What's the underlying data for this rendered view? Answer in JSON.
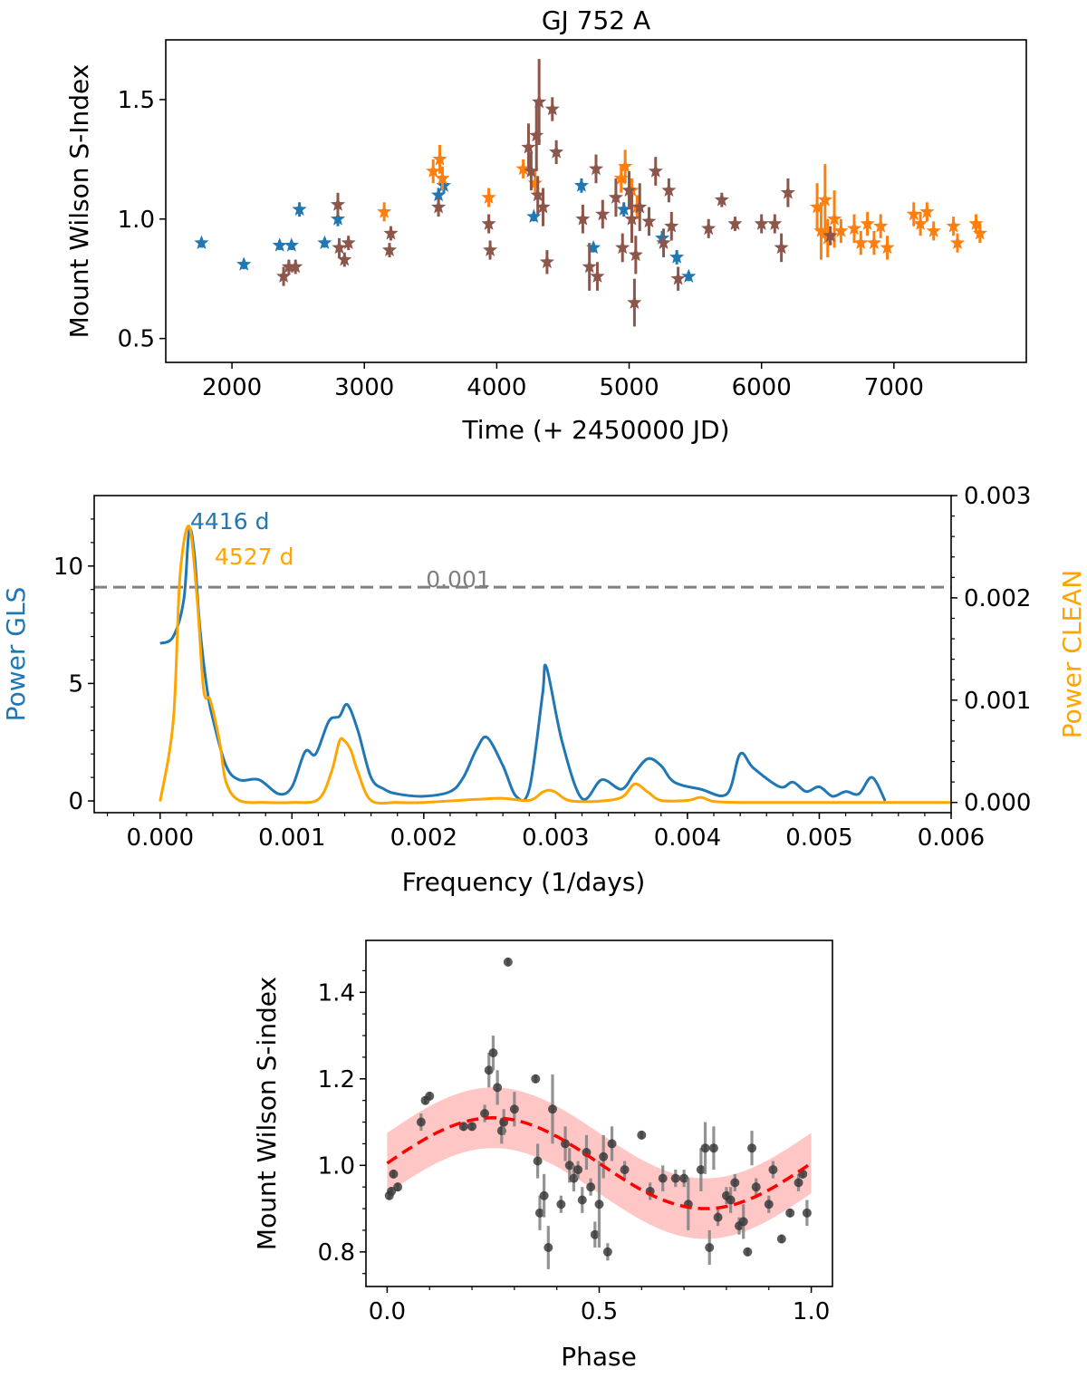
{
  "chart_data": [
    {
      "type": "scatter",
      "title": "GJ 752 A",
      "xlabel": "Time (+ 2450000 JD)",
      "ylabel": "Mount Wilson S-Index",
      "xlim": [
        1500,
        8000
      ],
      "ylim": [
        0.4,
        1.75
      ],
      "xticks": [
        2000,
        3000,
        4000,
        5000,
        6000,
        7000
      ],
      "xtick_labels": [
        "2000",
        "3000",
        "4000",
        "5000",
        "6000",
        "7000"
      ],
      "yticks": [
        0.5,
        1.0,
        1.5
      ],
      "ytick_labels": [
        "0.5",
        "1.0",
        "1.5"
      ],
      "colors": {
        "blue": "#1f77b4",
        "orange": "#ff7f0e",
        "brown": "#8c564b"
      },
      "series": [
        {
          "name": "blue",
          "color": "#1f77b4",
          "points": [
            [
              1770,
              0.9,
              0.02
            ],
            [
              2090,
              0.81,
              0.02
            ],
            [
              2360,
              0.89,
              0.02
            ],
            [
              2450,
              0.89,
              0.02
            ],
            [
              2510,
              1.04,
              0.03
            ],
            [
              2700,
              0.9,
              0.02
            ],
            [
              2800,
              1.0,
              0.03
            ],
            [
              3560,
              1.1,
              0.03
            ],
            [
              3600,
              1.14,
              0.03
            ],
            [
              4280,
              1.01,
              0.02
            ],
            [
              4640,
              1.14,
              0.03
            ],
            [
              4730,
              0.88,
              0.02
            ],
            [
              4960,
              1.04,
              0.03
            ],
            [
              5250,
              0.92,
              0.03
            ],
            [
              5360,
              0.84,
              0.03
            ],
            [
              5450,
              0.76,
              0.02
            ]
          ]
        },
        {
          "name": "orange",
          "color": "#ff7f0e",
          "points": [
            [
              3150,
              1.03,
              0.04
            ],
            [
              3520,
              1.2,
              0.05
            ],
            [
              3570,
              1.25,
              0.06
            ],
            [
              3590,
              1.17,
              0.05
            ],
            [
              3940,
              1.09,
              0.04
            ],
            [
              4200,
              1.21,
              0.04
            ],
            [
              4290,
              1.15,
              0.05
            ],
            [
              4940,
              1.17,
              0.06
            ],
            [
              4970,
              1.22,
              0.07
            ],
            [
              5020,
              1.12,
              0.05
            ],
            [
              5060,
              1.05,
              0.05
            ],
            [
              6420,
              1.05,
              0.1
            ],
            [
              6450,
              0.95,
              0.12
            ],
            [
              6480,
              1.08,
              0.15
            ],
            [
              6500,
              0.92,
              0.08
            ],
            [
              6550,
              1.0,
              0.12
            ],
            [
              6600,
              0.95,
              0.05
            ],
            [
              6700,
              0.96,
              0.06
            ],
            [
              6750,
              0.9,
              0.05
            ],
            [
              6800,
              0.98,
              0.05
            ],
            [
              6850,
              0.9,
              0.05
            ],
            [
              6900,
              0.97,
              0.05
            ],
            [
              6950,
              0.88,
              0.05
            ],
            [
              7150,
              1.02,
              0.05
            ],
            [
              7200,
              0.98,
              0.05
            ],
            [
              7250,
              1.03,
              0.04
            ],
            [
              7300,
              0.95,
              0.04
            ],
            [
              7450,
              0.97,
              0.04
            ],
            [
              7480,
              0.9,
              0.04
            ],
            [
              7620,
              0.98,
              0.04
            ],
            [
              7650,
              0.94,
              0.04
            ]
          ]
        },
        {
          "name": "brown",
          "color": "#8c564b",
          "points": [
            [
              2390,
              0.76,
              0.04
            ],
            [
              2430,
              0.8,
              0.03
            ],
            [
              2480,
              0.8,
              0.03
            ],
            [
              2800,
              1.06,
              0.05
            ],
            [
              2810,
              0.88,
              0.04
            ],
            [
              2850,
              0.83,
              0.03
            ],
            [
              2880,
              0.9,
              0.03
            ],
            [
              3190,
              0.87,
              0.03
            ],
            [
              3200,
              0.94,
              0.03
            ],
            [
              3560,
              1.05,
              0.04
            ],
            [
              3940,
              0.98,
              0.04
            ],
            [
              3950,
              0.87,
              0.04
            ],
            [
              4240,
              1.3,
              0.1
            ],
            [
              4260,
              1.2,
              0.08
            ],
            [
              4300,
              1.35,
              0.15
            ],
            [
              4310,
              1.1,
              0.08
            ],
            [
              4320,
              1.49,
              0.18
            ],
            [
              4350,
              1.05,
              0.08
            ],
            [
              4380,
              0.82,
              0.05
            ],
            [
              4420,
              1.46,
              0.05
            ],
            [
              4450,
              1.28,
              0.05
            ],
            [
              4650,
              1.0,
              0.06
            ],
            [
              4700,
              0.8,
              0.1
            ],
            [
              4750,
              1.21,
              0.06
            ],
            [
              4760,
              0.76,
              0.06
            ],
            [
              4800,
              1.02,
              0.06
            ],
            [
              4900,
              1.09,
              0.08
            ],
            [
              4950,
              0.88,
              0.06
            ],
            [
              5000,
              1.12,
              0.08
            ],
            [
              5020,
              1.0,
              0.1
            ],
            [
              5040,
              0.65,
              0.1
            ],
            [
              5050,
              0.85,
              0.08
            ],
            [
              5080,
              1.05,
              0.1
            ],
            [
              5150,
              0.99,
              0.06
            ],
            [
              5200,
              1.2,
              0.06
            ],
            [
              5260,
              0.9,
              0.06
            ],
            [
              5300,
              1.12,
              0.05
            ],
            [
              5320,
              0.97,
              0.06
            ],
            [
              5370,
              0.75,
              0.05
            ],
            [
              5600,
              0.96,
              0.04
            ],
            [
              5700,
              1.08,
              0.03
            ],
            [
              5800,
              0.98,
              0.03
            ],
            [
              6000,
              0.98,
              0.04
            ],
            [
              6100,
              0.98,
              0.04
            ],
            [
              6150,
              0.88,
              0.06
            ],
            [
              6200,
              1.11,
              0.06
            ],
            [
              6520,
              0.93,
              0.04
            ]
          ]
        }
      ]
    },
    {
      "type": "line",
      "xlabel": "Frequency (1/days)",
      "ylabel_left": "Power GLS",
      "ylabel_right": "Power CLEAN",
      "xlim": [
        -0.0005,
        0.006
      ],
      "ylim_left": [
        -0.5,
        13
      ],
      "ylim_right": [
        -0.0001,
        0.003
      ],
      "xticks": [
        0.0,
        0.001,
        0.002,
        0.003,
        0.004,
        0.005,
        0.006
      ],
      "xtick_labels": [
        "0.000",
        "0.001",
        "0.002",
        "0.003",
        "0.004",
        "0.005",
        "0.006"
      ],
      "yticks_left": [
        0,
        5,
        10
      ],
      "ytick_labels_left": [
        "0",
        "5",
        "10"
      ],
      "yticks_right": [
        0.0,
        0.001,
        0.002,
        0.003
      ],
      "ytick_labels_right": [
        "0.000",
        "0.001",
        "0.002",
        "0.003"
      ],
      "threshold": {
        "value": 9.1,
        "label": "0.001",
        "color": "#808080"
      },
      "annotations": [
        {
          "text": "4416 d",
          "color": "#1f77b4"
        },
        {
          "text": "4527 d",
          "color": "#ffa500"
        }
      ],
      "series": [
        {
          "name": "GLS",
          "color": "#1f77b4",
          "axis": "left",
          "x": [
            0.0,
            0.0001,
            0.00018,
            0.00022,
            0.00026,
            0.0003,
            0.00035,
            0.0004,
            0.0005,
            0.0006,
            0.00075,
            0.0009,
            0.001,
            0.0011,
            0.00118,
            0.00128,
            0.00136,
            0.00142,
            0.0015,
            0.0016,
            0.0017,
            0.0018,
            0.002,
            0.0022,
            0.0023,
            0.0024,
            0.00248,
            0.0026,
            0.0027,
            0.0028,
            0.0029,
            0.00293,
            0.00305,
            0.0032,
            0.00335,
            0.0035,
            0.0036,
            0.0037,
            0.0038,
            0.0039,
            0.0041,
            0.0043,
            0.0044,
            0.0045,
            0.0047,
            0.0048,
            0.0049,
            0.005,
            0.0051,
            0.0052,
            0.0053,
            0.0054,
            0.0055
          ],
          "y": [
            6.7,
            7.0,
            8.6,
            11.5,
            10.5,
            7.5,
            5.0,
            3.5,
            1.5,
            0.9,
            0.9,
            0.3,
            0.6,
            2.1,
            2.0,
            3.4,
            3.6,
            4.1,
            3.0,
            1.0,
            0.5,
            0.3,
            0.2,
            0.4,
            1.0,
            2.2,
            2.7,
            1.5,
            0.2,
            0.5,
            4.5,
            5.7,
            2.5,
            0.1,
            0.9,
            0.5,
            1.2,
            1.8,
            1.5,
            0.8,
            0.5,
            0.3,
            2.0,
            1.4,
            0.6,
            0.8,
            0.4,
            0.6,
            0.2,
            0.4,
            0.3,
            1.0,
            0.0
          ]
        },
        {
          "name": "CLEAN",
          "color": "#ffa500",
          "axis": "right",
          "x": [
            0.0,
            0.0001,
            0.00015,
            0.00022,
            0.00028,
            0.00033,
            0.00038,
            0.00045,
            0.0005,
            0.0006,
            0.0008,
            0.001,
            0.0012,
            0.0013,
            0.00136,
            0.0014,
            0.00145,
            0.0015,
            0.0016,
            0.0018,
            0.002,
            0.0024,
            0.0026,
            0.0028,
            0.0029,
            0.00295,
            0.003,
            0.0031,
            0.0033,
            0.0035,
            0.0036,
            0.0037,
            0.0038,
            0.004,
            0.0041,
            0.0042,
            0.0044,
            0.0047,
            0.005,
            0.006
          ],
          "y": [
            1e-05,
            0.0008,
            0.0022,
            0.0027,
            0.002,
            0.0011,
            0.001,
            0.0006,
            0.0002,
            2e-05,
            0.0,
            0.0,
            3e-05,
            0.0003,
            0.0006,
            0.0006,
            0.0005,
            0.0003,
            2e-05,
            0.0,
            0.0,
            3e-05,
            4e-05,
            2e-05,
            0.0001,
            0.00012,
            0.0001,
            2e-05,
            1e-05,
            5e-05,
            0.00018,
            0.0001,
            2e-05,
            2e-05,
            5e-05,
            1e-05,
            0.0,
            0.0,
            0.0,
            0.0
          ]
        }
      ]
    },
    {
      "type": "scatter",
      "xlabel": "Phase",
      "ylabel": "Mount Wilson S-index",
      "xlim": [
        -0.05,
        1.05
      ],
      "ylim": [
        0.72,
        1.52
      ],
      "xticks": [
        0.0,
        0.5,
        1.0
      ],
      "xtick_labels": [
        "0.0",
        "0.5",
        "1.0"
      ],
      "yticks": [
        0.8,
        1.0,
        1.2,
        1.4
      ],
      "ytick_labels": [
        "0.8",
        "1.0",
        "1.2",
        "1.4"
      ],
      "fit": {
        "model": "sinusoid",
        "mean": 1.005,
        "amplitude": 0.105,
        "peak_phase": 0.25,
        "band_halfwidth": 0.07,
        "color": "#ff0000",
        "band_color": "#ffb3b3"
      },
      "points": [
        [
          0.005,
          0.93,
          0.01
        ],
        [
          0.01,
          0.94,
          0.01
        ],
        [
          0.015,
          0.98,
          0.01
        ],
        [
          0.025,
          0.95,
          0.01
        ],
        [
          0.08,
          1.1,
          0.02
        ],
        [
          0.09,
          1.15,
          0.01
        ],
        [
          0.1,
          1.16,
          0.01
        ],
        [
          0.18,
          1.09,
          0.01
        ],
        [
          0.2,
          1.09,
          0.01
        ],
        [
          0.23,
          1.12,
          0.02
        ],
        [
          0.24,
          1.22,
          0.04
        ],
        [
          0.25,
          1.26,
          0.04
        ],
        [
          0.26,
          1.18,
          0.04
        ],
        [
          0.27,
          1.08,
          0.03
        ],
        [
          0.275,
          1.1,
          0.03
        ],
        [
          0.285,
          1.47,
          0.01
        ],
        [
          0.3,
          1.13,
          0.04
        ],
        [
          0.35,
          1.2,
          0.01
        ],
        [
          0.355,
          1.01,
          0.04
        ],
        [
          0.36,
          0.89,
          0.04
        ],
        [
          0.37,
          0.93,
          0.05
        ],
        [
          0.38,
          0.81,
          0.05
        ],
        [
          0.39,
          1.13,
          0.08
        ],
        [
          0.41,
          0.91,
          0.02
        ],
        [
          0.42,
          1.05,
          0.04
        ],
        [
          0.43,
          1.0,
          0.04
        ],
        [
          0.44,
          0.97,
          0.03
        ],
        [
          0.45,
          0.99,
          0.02
        ],
        [
          0.46,
          0.92,
          0.03
        ],
        [
          0.47,
          1.03,
          0.04
        ],
        [
          0.48,
          0.95,
          0.02
        ],
        [
          0.49,
          0.84,
          0.03
        ],
        [
          0.5,
          0.91,
          0.1
        ],
        [
          0.51,
          1.02,
          0.05
        ],
        [
          0.52,
          0.8,
          0.02
        ],
        [
          0.53,
          1.05,
          0.04
        ],
        [
          0.56,
          0.99,
          0.02
        ],
        [
          0.6,
          1.07,
          0.01
        ],
        [
          0.62,
          0.94,
          0.02
        ],
        [
          0.65,
          0.97,
          0.03
        ],
        [
          0.68,
          0.97,
          0.02
        ],
        [
          0.7,
          0.97,
          0.02
        ],
        [
          0.71,
          0.91,
          0.06
        ],
        [
          0.74,
          0.99,
          0.05
        ],
        [
          0.75,
          1.04,
          0.06
        ],
        [
          0.76,
          0.81,
          0.04
        ],
        [
          0.77,
          1.04,
          0.05
        ],
        [
          0.78,
          0.88,
          0.02
        ],
        [
          0.8,
          0.93,
          0.02
        ],
        [
          0.81,
          0.92,
          0.03
        ],
        [
          0.82,
          0.96,
          0.02
        ],
        [
          0.83,
          0.86,
          0.02
        ],
        [
          0.84,
          0.87,
          0.04
        ],
        [
          0.85,
          0.8,
          0.01
        ],
        [
          0.86,
          1.04,
          0.04
        ],
        [
          0.87,
          0.95,
          0.02
        ],
        [
          0.9,
          0.91,
          0.02
        ],
        [
          0.91,
          0.99,
          0.02
        ],
        [
          0.93,
          0.83,
          0.01
        ],
        [
          0.95,
          0.89,
          0.01
        ],
        [
          0.97,
          0.96,
          0.02
        ],
        [
          0.98,
          0.98,
          0.01
        ],
        [
          0.99,
          0.89,
          0.03
        ]
      ]
    }
  ]
}
